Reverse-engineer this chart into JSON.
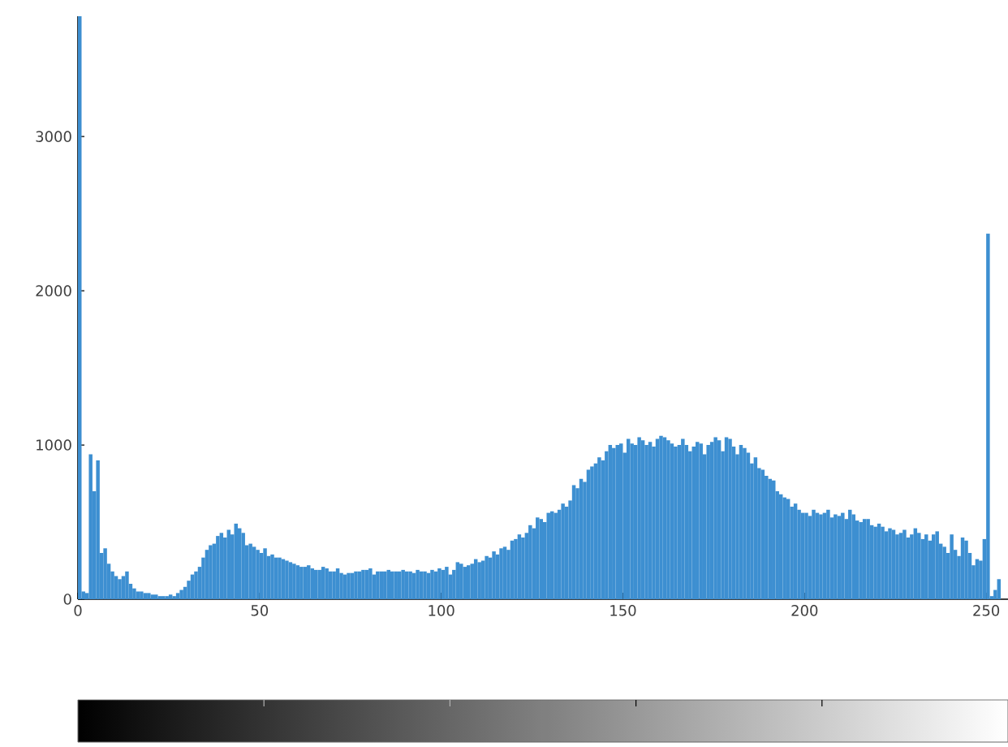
{
  "chart_data": {
    "type": "histogram",
    "bins": [
      0,
      1,
      2,
      3,
      4,
      5,
      6,
      7,
      8,
      9,
      10,
      11,
      12,
      13,
      14,
      15,
      16,
      17,
      18,
      19,
      20,
      21,
      22,
      23,
      24,
      25,
      26,
      27,
      28,
      29,
      30,
      31,
      32,
      33,
      34,
      35,
      36,
      37,
      38,
      39,
      40,
      41,
      42,
      43,
      44,
      45,
      46,
      47,
      48,
      49,
      50,
      51,
      52,
      53,
      54,
      55,
      56,
      57,
      58,
      59,
      60,
      61,
      62,
      63,
      64,
      65,
      66,
      67,
      68,
      69,
      70,
      71,
      72,
      73,
      74,
      75,
      76,
      77,
      78,
      79,
      80,
      81,
      82,
      83,
      84,
      85,
      86,
      87,
      88,
      89,
      90,
      91,
      92,
      93,
      94,
      95,
      96,
      97,
      98,
      99,
      100,
      101,
      102,
      103,
      104,
      105,
      106,
      107,
      108,
      109,
      110,
      111,
      112,
      113,
      114,
      115,
      116,
      117,
      118,
      119,
      120,
      121,
      122,
      123,
      124,
      125,
      126,
      127,
      128,
      129,
      130,
      131,
      132,
      133,
      134,
      135,
      136,
      137,
      138,
      139,
      140,
      141,
      142,
      143,
      144,
      145,
      146,
      147,
      148,
      149,
      150,
      151,
      152,
      153,
      154,
      155,
      156,
      157,
      158,
      159,
      160,
      161,
      162,
      163,
      164,
      165,
      166,
      167,
      168,
      169,
      170,
      171,
      172,
      173,
      174,
      175,
      176,
      177,
      178,
      179,
      180,
      181,
      182,
      183,
      184,
      185,
      186,
      187,
      188,
      189,
      190,
      191,
      192,
      193,
      194,
      195,
      196,
      197,
      198,
      199,
      200,
      201,
      202,
      203,
      204,
      205,
      206,
      207,
      208,
      209,
      210,
      211,
      212,
      213,
      214,
      215,
      216,
      217,
      218,
      219,
      220,
      221,
      222,
      223,
      224,
      225,
      226,
      227,
      228,
      229,
      230,
      231,
      232,
      233,
      234,
      235,
      236,
      237,
      238,
      239,
      240,
      241,
      242,
      243,
      244,
      245,
      246,
      247,
      248,
      249,
      250,
      251,
      252,
      253,
      254,
      255,
      256
    ],
    "values": [
      3780,
      50,
      40,
      940,
      700,
      900,
      300,
      330,
      230,
      180,
      150,
      130,
      150,
      180,
      100,
      70,
      50,
      50,
      40,
      40,
      30,
      30,
      20,
      20,
      20,
      30,
      20,
      40,
      60,
      80,
      120,
      160,
      180,
      210,
      270,
      320,
      350,
      360,
      410,
      430,
      400,
      450,
      420,
      490,
      460,
      430,
      350,
      360,
      340,
      320,
      300,
      330,
      280,
      290,
      270,
      270,
      260,
      250,
      240,
      230,
      220,
      210,
      210,
      220,
      200,
      190,
      190,
      210,
      200,
      180,
      180,
      200,
      170,
      160,
      170,
      170,
      180,
      180,
      190,
      190,
      200,
      160,
      180,
      180,
      180,
      190,
      180,
      180,
      180,
      190,
      180,
      180,
      170,
      190,
      180,
      180,
      170,
      190,
      180,
      200,
      190,
      210,
      160,
      190,
      240,
      230,
      210,
      220,
      230,
      260,
      240,
      250,
      280,
      270,
      310,
      290,
      330,
      340,
      320,
      380,
      390,
      420,
      400,
      430,
      480,
      460,
      530,
      520,
      500,
      560,
      570,
      560,
      580,
      620,
      600,
      640,
      740,
      720,
      780,
      760,
      840,
      860,
      880,
      920,
      900,
      960,
      1000,
      980,
      1000,
      1010,
      950,
      1040,
      1010,
      1000,
      1050,
      1030,
      1000,
      1020,
      990,
      1040,
      1060,
      1050,
      1030,
      1010,
      990,
      1000,
      1040,
      1000,
      960,
      990,
      1020,
      1010,
      940,
      1000,
      1020,
      1050,
      1030,
      960,
      1050,
      1040,
      990,
      940,
      1000,
      980,
      950,
      880,
      920,
      850,
      840,
      800,
      780,
      770,
      700,
      680,
      660,
      650,
      600,
      620,
      580,
      560,
      560,
      540,
      580,
      560,
      550,
      560,
      580,
      530,
      550,
      540,
      560,
      520,
      580,
      550,
      510,
      500,
      520,
      520,
      480,
      470,
      490,
      470,
      440,
      460,
      450,
      420,
      430,
      450,
      400,
      420,
      460,
      430,
      390,
      420,
      380,
      420,
      440,
      360,
      340,
      300,
      420,
      320,
      280,
      400,
      380,
      300,
      220,
      260,
      250,
      390,
      2370,
      20,
      60,
      130,
      0,
      0
    ],
    "color": "#3d8fd1",
    "xlim": [
      0,
      256
    ],
    "ylim": [
      0,
      3780
    ],
    "xticks": [
      0,
      50,
      100,
      150,
      200,
      250
    ],
    "yticks": [
      0,
      1000,
      2000,
      3000
    ]
  }
}
